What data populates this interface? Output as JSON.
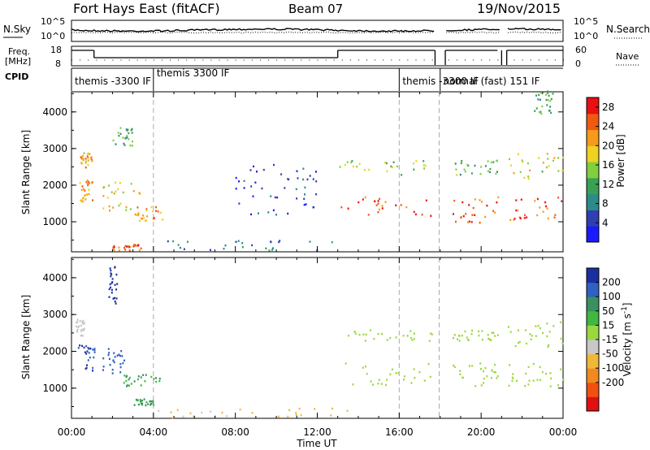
{
  "header": {
    "radar": "Fort Hays East (fitACF)",
    "beam": "Beam 07",
    "date": "19/Nov/2015"
  },
  "sky_panel": {
    "left_label": "N.Sky",
    "left_ticks": [
      "10^5",
      "10^0"
    ],
    "right_label": "N.Search",
    "right_ticks": [
      "10^5",
      "10^0"
    ]
  },
  "freq_panel": {
    "left_label_1": "Freq.",
    "left_label_2": "[MHz]",
    "left_ticks": [
      "18",
      "8"
    ],
    "right_label": "Nave",
    "right_ticks": [
      "60",
      "0"
    ]
  },
  "cpid": {
    "label": "CPID",
    "segments": [
      {
        "start_h": 0.0,
        "text": "themis -3300 IF"
      },
      {
        "start_h": 4.0,
        "text": "themis 3300 IF"
      },
      {
        "start_h": 16.0,
        "text": "themis -3300 IF"
      },
      {
        "start_h": 18.0,
        "text": "normal (fast) 151 IF"
      }
    ]
  },
  "colors": {
    "power_scale": [
      "#1a1aff",
      "#2f3fb0",
      "#2c8a8a",
      "#3aa054",
      "#7fcf3f",
      "#f0d020",
      "#f59a1a",
      "#f05a10",
      "#e81010"
    ],
    "velocity_scale": [
      "#1c2fa0",
      "#3060c0",
      "#3a9060",
      "#40b840",
      "#9ad840",
      "#c8c8c8",
      "#f0b838",
      "#f08a20",
      "#f05010",
      "#e01010"
    ],
    "dash": "#aaaaaa"
  },
  "chart_data": [
    {
      "type": "heatmap",
      "title": "",
      "ylabel": "Slant Range [km]",
      "xlabel": "",
      "xlim": [
        0,
        24
      ],
      "ylim": [
        180,
        4550
      ],
      "y_ticks": [
        1000,
        2000,
        3000,
        4000
      ],
      "colorbar": {
        "label": "Power [dB]",
        "ticks": [
          4,
          8,
          12,
          16,
          20,
          24,
          28
        ],
        "range": [
          0,
          30
        ]
      },
      "scatter_regions": [
        {
          "t": [
            0.3,
            1.1
          ],
          "r": [
            1500,
            2200
          ],
          "value": 22
        },
        {
          "t": [
            0.4,
            1.0
          ],
          "r": [
            2500,
            2900
          ],
          "value": 20
        },
        {
          "t": [
            1.5,
            3.3
          ],
          "r": [
            1300,
            2100
          ],
          "value": 18
        },
        {
          "t": [
            2.0,
            3.0
          ],
          "r": [
            3100,
            3600
          ],
          "value": 12
        },
        {
          "t": [
            3.0,
            4.5
          ],
          "r": [
            1050,
            1450
          ],
          "value": 22
        },
        {
          "t": [
            2.0,
            3.5
          ],
          "r": [
            240,
            400
          ],
          "value": 26
        },
        {
          "t": [
            4.5,
            13.0
          ],
          "r": [
            230,
            520
          ],
          "value": 8
        },
        {
          "t": [
            8.0,
            12.0
          ],
          "r": [
            1200,
            2600
          ],
          "value": 4
        },
        {
          "t": [
            13.0,
            17.6
          ],
          "r": [
            1150,
            1700
          ],
          "value": 26
        },
        {
          "t": [
            13.0,
            17.6
          ],
          "r": [
            2300,
            2700
          ],
          "value": 16
        },
        {
          "t": [
            18.6,
            20.8
          ],
          "r": [
            1000,
            1700
          ],
          "value": 26
        },
        {
          "t": [
            18.6,
            20.8
          ],
          "r": [
            2300,
            2700
          ],
          "value": 12
        },
        {
          "t": [
            21.3,
            24.0
          ],
          "r": [
            1000,
            1700
          ],
          "value": 26
        },
        {
          "t": [
            21.3,
            24.0
          ],
          "r": [
            2200,
            2900
          ],
          "value": 18
        },
        {
          "t": [
            22.5,
            23.5
          ],
          "r": [
            3900,
            4600
          ],
          "value": 12
        }
      ]
    },
    {
      "type": "heatmap",
      "title": "",
      "ylabel": "Slant Range [km]",
      "xlabel": "Time UT",
      "xlim": [
        0,
        24
      ],
      "ylim": [
        180,
        4550
      ],
      "y_ticks": [
        1000,
        2000,
        3000,
        4000
      ],
      "x_ticks": [
        "00:00",
        "04:00",
        "08:00",
        "12:00",
        "16:00",
        "20:00",
        "00:00"
      ],
      "colorbar": {
        "label": "Velocity [m s^-1]",
        "ticks": [
          200,
          100,
          50,
          15,
          -15,
          -50,
          -100,
          -200
        ],
        "range": [
          -250,
          250
        ]
      },
      "scatter_regions": [
        {
          "t": [
            0.3,
            1.1
          ],
          "r": [
            1500,
            2200
          ],
          "value": 200
        },
        {
          "t": [
            0.2,
            0.6
          ],
          "r": [
            2400,
            2900
          ],
          "value": -30
        },
        {
          "t": [
            1.5,
            2.6
          ],
          "r": [
            1400,
            2100
          ],
          "value": 150
        },
        {
          "t": [
            1.8,
            2.2
          ],
          "r": [
            3300,
            4400
          ],
          "value": 230
        },
        {
          "t": [
            2.5,
            4.3
          ],
          "r": [
            1050,
            1400
          ],
          "value": 60
        },
        {
          "t": [
            3.0,
            4.0
          ],
          "r": [
            550,
            750
          ],
          "value": 60
        },
        {
          "t": [
            4.0,
            13.5
          ],
          "r": [
            210,
            480
          ],
          "value": -60
        },
        {
          "t": [
            13.0,
            17.6
          ],
          "r": [
            1100,
            1700
          ],
          "value": 0
        },
        {
          "t": [
            13.0,
            17.6
          ],
          "r": [
            2300,
            2600
          ],
          "value": 0
        },
        {
          "t": [
            18.6,
            20.8
          ],
          "r": [
            1050,
            1700
          ],
          "value": 0
        },
        {
          "t": [
            18.6,
            20.8
          ],
          "r": [
            2300,
            2600
          ],
          "value": 0
        },
        {
          "t": [
            21.3,
            24.0
          ],
          "r": [
            1050,
            1700
          ],
          "value": 0
        },
        {
          "t": [
            21.3,
            24.0
          ],
          "r": [
            2100,
            2900
          ],
          "value": 0
        }
      ]
    }
  ],
  "dashed_lines_h": [
    4.0,
    16.0,
    17.95
  ],
  "data_gaps_h": [
    [
      17.75,
      18.25
    ],
    [
      21.0,
      21.25
    ]
  ]
}
